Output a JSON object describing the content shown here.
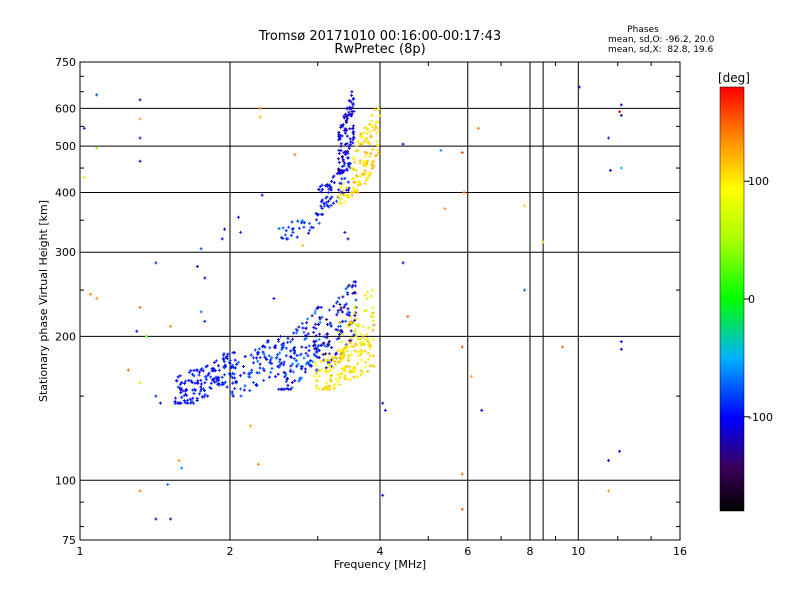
{
  "chart_data": {
    "type": "scatter",
    "title": "Tromsø 20171010 00:16:00-00:17:43",
    "subtitle": "RwPretec (8p)",
    "xlabel": "Frequency [MHz]",
    "ylabel": "Stationary phase Virtual Height [km]",
    "x_scale": "log",
    "y_scale": "log",
    "xlim": [
      1,
      16
    ],
    "ylim": [
      75,
      750
    ],
    "x_ticks": [
      {
        "value": 1,
        "label": "1"
      },
      {
        "value": 2,
        "label": "2"
      },
      {
        "value": 4,
        "label": "4"
      },
      {
        "value": 6,
        "label": "6"
      },
      {
        "value": 8,
        "label": "8"
      },
      {
        "value": 10,
        "label": "10"
      },
      {
        "value": 16,
        "label": "16"
      }
    ],
    "y_ticks": [
      {
        "value": 75,
        "label": "75"
      },
      {
        "value": 100,
        "label": "100"
      },
      {
        "value": 200,
        "label": "200"
      },
      {
        "value": 300,
        "label": "300"
      },
      {
        "value": 400,
        "label": "400"
      },
      {
        "value": 500,
        "label": "500"
      },
      {
        "value": 600,
        "label": "600"
      },
      {
        "value": 750,
        "label": "750"
      }
    ],
    "grid": true,
    "phases": {
      "title": "Phases",
      "line_o": "mean, sd,O: -96.2, 20.0",
      "line_x": "mean, sd,X:  82.8, 19.6"
    },
    "colorbar": {
      "label": "[deg]",
      "range": [
        -180,
        180
      ],
      "ticks": [
        {
          "value": 100,
          "label": "100"
        },
        {
          "value": 0,
          "label": "0"
        },
        {
          "value": -100,
          "label": "-100"
        }
      ]
    },
    "clusters": [
      {
        "name": "",
        "f_range": [
          1.55,
          2.05
        ],
        "h_range": [
          145,
          185
        ],
        "phase_range": [
          -115,
          -80
        ],
        "count": 150
      },
      {
        "name": "",
        "f_range": [
          2.0,
          2.55
        ],
        "h_range": [
          150,
          200
        ],
        "phase_range": [
          -110,
          -70
        ],
        "count": 90
      },
      {
        "name": "",
        "f_range": [
          2.5,
          3.05
        ],
        "h_range": [
          155,
          230
        ],
        "phase_range": [
          -130,
          -60
        ],
        "count": 130
      },
      {
        "name": "",
        "f_range": [
          2.95,
          3.6
        ],
        "h_range": [
          170,
          260
        ],
        "phase_range": [
          -140,
          -70
        ],
        "count": 110
      },
      {
        "name": "",
        "f_range": [
          2.95,
          3.9
        ],
        "h_range": [
          155,
          200
        ],
        "phase_range": [
          90,
          120
        ],
        "count": 150
      },
      {
        "name": "",
        "f_range": [
          3.3,
          3.9
        ],
        "h_range": [
          180,
          250
        ],
        "phase_range": [
          60,
          140
        ],
        "count": 60
      },
      {
        "name": "",
        "f_range": [
          2.5,
          3.05
        ],
        "h_range": [
          320,
          360
        ],
        "phase_range": [
          -110,
          -70
        ],
        "count": 30
      },
      {
        "name": "",
        "f_range": [
          2.95,
          3.5
        ],
        "h_range": [
          360,
          460
        ],
        "phase_range": [
          -120,
          -80
        ],
        "count": 70
      },
      {
        "name": "",
        "f_range": [
          3.3,
          3.55
        ],
        "h_range": [
          440,
          650
        ],
        "phase_range": [
          -130,
          -95
        ],
        "count": 110
      },
      {
        "name": "",
        "f_range": [
          3.5,
          4.0
        ],
        "h_range": [
          400,
          600
        ],
        "phase_range": [
          90,
          125
        ],
        "count": 110
      },
      {
        "name": "",
        "f_range": [
          3.3,
          3.65
        ],
        "h_range": [
          380,
          440
        ],
        "phase_range": [
          80,
          135
        ],
        "count": 25
      }
    ],
    "scattered_points": [
      {
        "f": 1.08,
        "h": 640,
        "phase": -80
      },
      {
        "f": 1.32,
        "h": 625,
        "phase": -110
      },
      {
        "f": 1.02,
        "h": 545,
        "phase": -100
      },
      {
        "f": 1.32,
        "h": 520,
        "phase": -95
      },
      {
        "f": 1.08,
        "h": 495,
        "phase": 40
      },
      {
        "f": 1.32,
        "h": 465,
        "phase": -110
      },
      {
        "f": 1.32,
        "h": 570,
        "phase": 130
      },
      {
        "f": 1.02,
        "h": 430,
        "phase": 100
      },
      {
        "f": 1.42,
        "h": 285,
        "phase": -90
      },
      {
        "f": 1.05,
        "h": 245,
        "phase": 140
      },
      {
        "f": 1.08,
        "h": 240,
        "phase": 130
      },
      {
        "f": 1.32,
        "h": 230,
        "phase": 150
      },
      {
        "f": 1.3,
        "h": 205,
        "phase": -100
      },
      {
        "f": 1.36,
        "h": 200,
        "phase": 20
      },
      {
        "f": 1.52,
        "h": 210,
        "phase": 140
      },
      {
        "f": 1.25,
        "h": 170,
        "phase": 150
      },
      {
        "f": 1.32,
        "h": 160,
        "phase": 60
      },
      {
        "f": 1.42,
        "h": 150,
        "phase": -90
      },
      {
        "f": 1.45,
        "h": 145,
        "phase": -120
      },
      {
        "f": 1.58,
        "h": 110,
        "phase": 130
      },
      {
        "f": 1.6,
        "h": 106,
        "phase": -60
      },
      {
        "f": 1.5,
        "h": 98,
        "phase": -70
      },
      {
        "f": 1.32,
        "h": 95,
        "phase": 140
      },
      {
        "f": 1.42,
        "h": 83,
        "phase": -110
      },
      {
        "f": 1.52,
        "h": 83,
        "phase": -120
      },
      {
        "f": 2.3,
        "h": 600,
        "phase": 140
      },
      {
        "f": 2.3,
        "h": 575,
        "phase": 120
      },
      {
        "f": 2.32,
        "h": 395,
        "phase": -100
      },
      {
        "f": 2.2,
        "h": 130,
        "phase": 130
      },
      {
        "f": 2.28,
        "h": 108,
        "phase": 140
      },
      {
        "f": 4.05,
        "h": 93,
        "phase": -100
      },
      {
        "f": 4.1,
        "h": 140,
        "phase": -110
      },
      {
        "f": 4.05,
        "h": 145,
        "phase": -120
      },
      {
        "f": 4.55,
        "h": 220,
        "phase": 150
      },
      {
        "f": 4.45,
        "h": 285,
        "phase": -110
      },
      {
        "f": 4.45,
        "h": 505,
        "phase": -110
      },
      {
        "f": 5.3,
        "h": 490,
        "phase": -60
      },
      {
        "f": 5.4,
        "h": 370,
        "phase": 130
      },
      {
        "f": 5.85,
        "h": 485,
        "phase": 160
      },
      {
        "f": 5.9,
        "h": 400,
        "phase": 150
      },
      {
        "f": 5.85,
        "h": 190,
        "phase": 150
      },
      {
        "f": 5.85,
        "h": 103,
        "phase": 145
      },
      {
        "f": 5.85,
        "h": 87,
        "phase": 150
      },
      {
        "f": 6.3,
        "h": 545,
        "phase": 140
      },
      {
        "f": 6.1,
        "h": 165,
        "phase": 130
      },
      {
        "f": 6.4,
        "h": 140,
        "phase": -110
      },
      {
        "f": 7.8,
        "h": 375,
        "phase": 110
      },
      {
        "f": 7.8,
        "h": 250,
        "phase": -70
      },
      {
        "f": 8.5,
        "h": 315,
        "phase": 110
      },
      {
        "f": 9.3,
        "h": 190,
        "phase": 150
      },
      {
        "f": 10.05,
        "h": 665,
        "phase": -100
      },
      {
        "f": 11.5,
        "h": 520,
        "phase": -90
      },
      {
        "f": 11.6,
        "h": 445,
        "phase": -100
      },
      {
        "f": 11.5,
        "h": 110,
        "phase": -100
      },
      {
        "f": 11.5,
        "h": 95,
        "phase": 130
      },
      {
        "f": 12.2,
        "h": 610,
        "phase": -110
      },
      {
        "f": 12.1,
        "h": 590,
        "phase": 180
      },
      {
        "f": 12.2,
        "h": 580,
        "phase": -130
      },
      {
        "f": 12.2,
        "h": 450,
        "phase": -40
      },
      {
        "f": 12.2,
        "h": 195,
        "phase": -100
      },
      {
        "f": 12.2,
        "h": 188,
        "phase": -110
      },
      {
        "f": 12.1,
        "h": 115,
        "phase": -110
      },
      {
        "f": 1.75,
        "h": 305,
        "phase": -80
      },
      {
        "f": 1.78,
        "h": 265,
        "phase": -100
      },
      {
        "f": 1.72,
        "h": 280,
        "phase": -120
      },
      {
        "f": 2.08,
        "h": 355,
        "phase": -100
      },
      {
        "f": 2.1,
        "h": 330,
        "phase": -90
      },
      {
        "f": 1.95,
        "h": 335,
        "phase": -100
      },
      {
        "f": 1.93,
        "h": 320,
        "phase": -110
      },
      {
        "f": 1.78,
        "h": 215,
        "phase": -90
      },
      {
        "f": 1.75,
        "h": 225,
        "phase": -70
      },
      {
        "f": 2.7,
        "h": 480,
        "phase": 140
      },
      {
        "f": 2.8,
        "h": 310,
        "phase": 120
      },
      {
        "f": 3.4,
        "h": 330,
        "phase": -110
      },
      {
        "f": 3.45,
        "h": 320,
        "phase": -120
      },
      {
        "f": 2.45,
        "h": 240,
        "phase": -100
      },
      {
        "f": 2.35,
        "h": 190,
        "phase": -120
      }
    ]
  }
}
